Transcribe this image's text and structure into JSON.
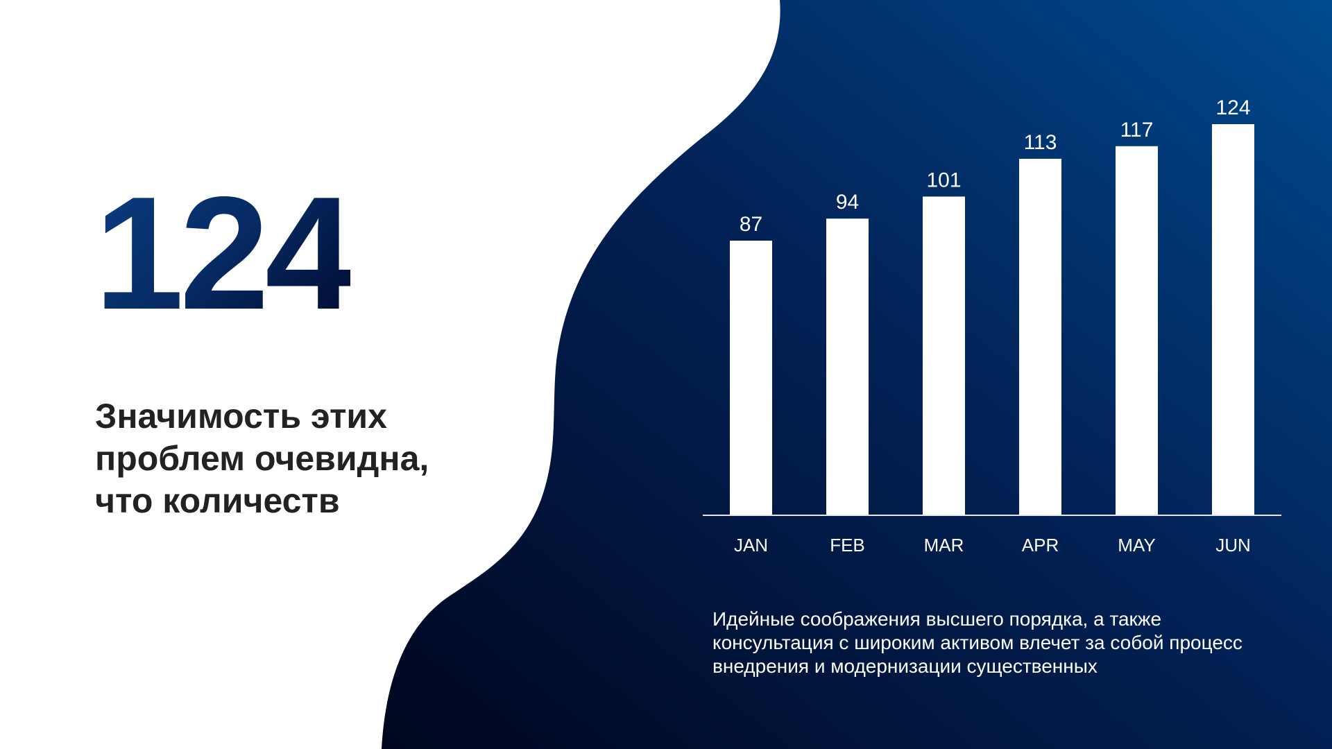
{
  "highlight_number": "124",
  "heading": "Значимость этих проблем очевидна, что количеств",
  "paragraph": "Идейные соображения высшего порядка, а также консультация с широким активом влечет за собой процесс внедрения и модернизации существенных",
  "colors": {
    "background_dark": "#000a2a",
    "background_light": "#004a8f",
    "bars": "#ffffff",
    "heading": "#222222"
  },
  "chart_data": {
    "type": "bar",
    "categories": [
      "JAN",
      "FEB",
      "MAR",
      "APR",
      "MAY",
      "JUN"
    ],
    "values": [
      87,
      94,
      101,
      113,
      117,
      124
    ],
    "data_labels": [
      "87",
      "94",
      "101",
      "113",
      "117",
      "124"
    ],
    "title": "",
    "xlabel": "",
    "ylabel": "",
    "ylim": [
      0,
      124
    ],
    "grid": false
  }
}
